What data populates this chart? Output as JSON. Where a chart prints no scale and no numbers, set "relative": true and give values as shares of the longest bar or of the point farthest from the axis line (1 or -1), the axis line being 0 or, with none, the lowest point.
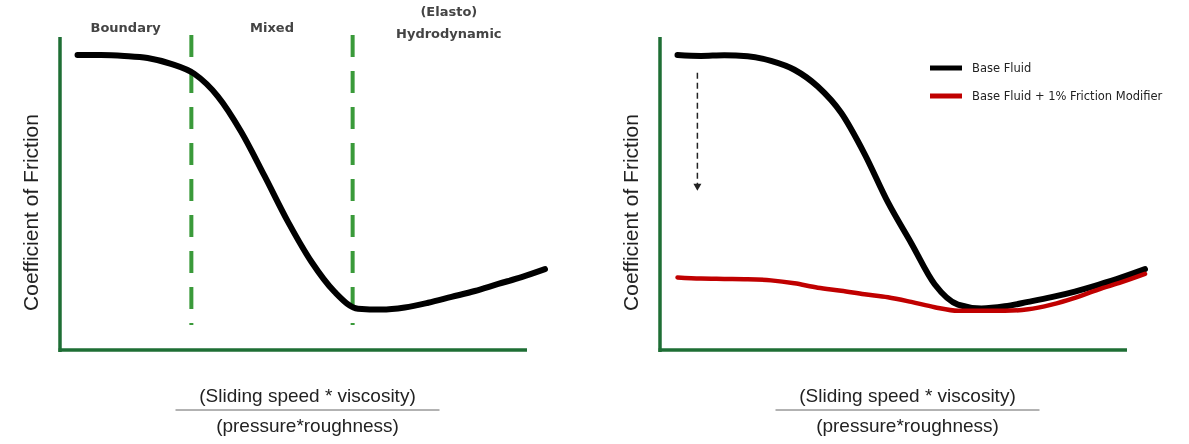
{
  "chart_data": [
    {
      "type": "line",
      "relative": true,
      "ylabel": "Coefficient of Friction",
      "xlabel": "(Sliding speed * viscosity)\n(pressure*roughness)",
      "categories": [
        null,
        null,
        null,
        null,
        null,
        null,
        null,
        null,
        null,
        null,
        null,
        null,
        null,
        null,
        null,
        null,
        null,
        null,
        null,
        null,
        null
      ],
      "series": [
        {
          "color": "#000000",
          "values": [
            1.0,
            1.0,
            0.997,
            0.99,
            0.97,
            0.936,
            0.86,
            0.74,
            0.59,
            0.435,
            0.3,
            0.197,
            0.14,
            0.137,
            0.144,
            0.16,
            0.18,
            0.2,
            0.224,
            0.247,
            0.274
          ]
        }
      ],
      "annotations": [
        "Boundary",
        "Mixed",
        "(Elasto)\nHydrodynamic"
      ],
      "grid": false,
      "legend": false,
      "line_style": "solid",
      "marker": "none"
    },
    {
      "type": "line",
      "relative": true,
      "ylabel": "Coefficient of Friction",
      "xlabel": "(Sliding speed * viscosity)\n(pressure*roughness)",
      "categories": [
        null,
        null,
        null,
        null,
        null,
        null,
        null,
        null,
        null,
        null,
        null,
        null,
        null,
        null,
        null,
        null,
        null,
        null,
        null,
        null,
        null
      ],
      "series": [
        {
          "name": "Base Fluid",
          "color": "#000000",
          "values": [
            1.0,
            0.997,
            0.999,
            0.996,
            0.98,
            0.95,
            0.893,
            0.804,
            0.665,
            0.501,
            0.362,
            0.223,
            0.154,
            0.141,
            0.148,
            0.163,
            0.179,
            0.198,
            0.221,
            0.246,
            0.274
          ]
        },
        {
          "name": "Base Fluid + 1% Friction Modifier",
          "color": "#c00000",
          "values": [
            0.246,
            0.242,
            0.241,
            0.24,
            0.236,
            0.226,
            0.211,
            0.201,
            0.189,
            0.179,
            0.163,
            0.145,
            0.133,
            0.133,
            0.133,
            0.138,
            0.154,
            0.177,
            0.205,
            0.23,
            0.258
          ]
        }
      ],
      "grid": false,
      "legend": "top right",
      "line_style": "solid",
      "marker": "none"
    }
  ]
}
